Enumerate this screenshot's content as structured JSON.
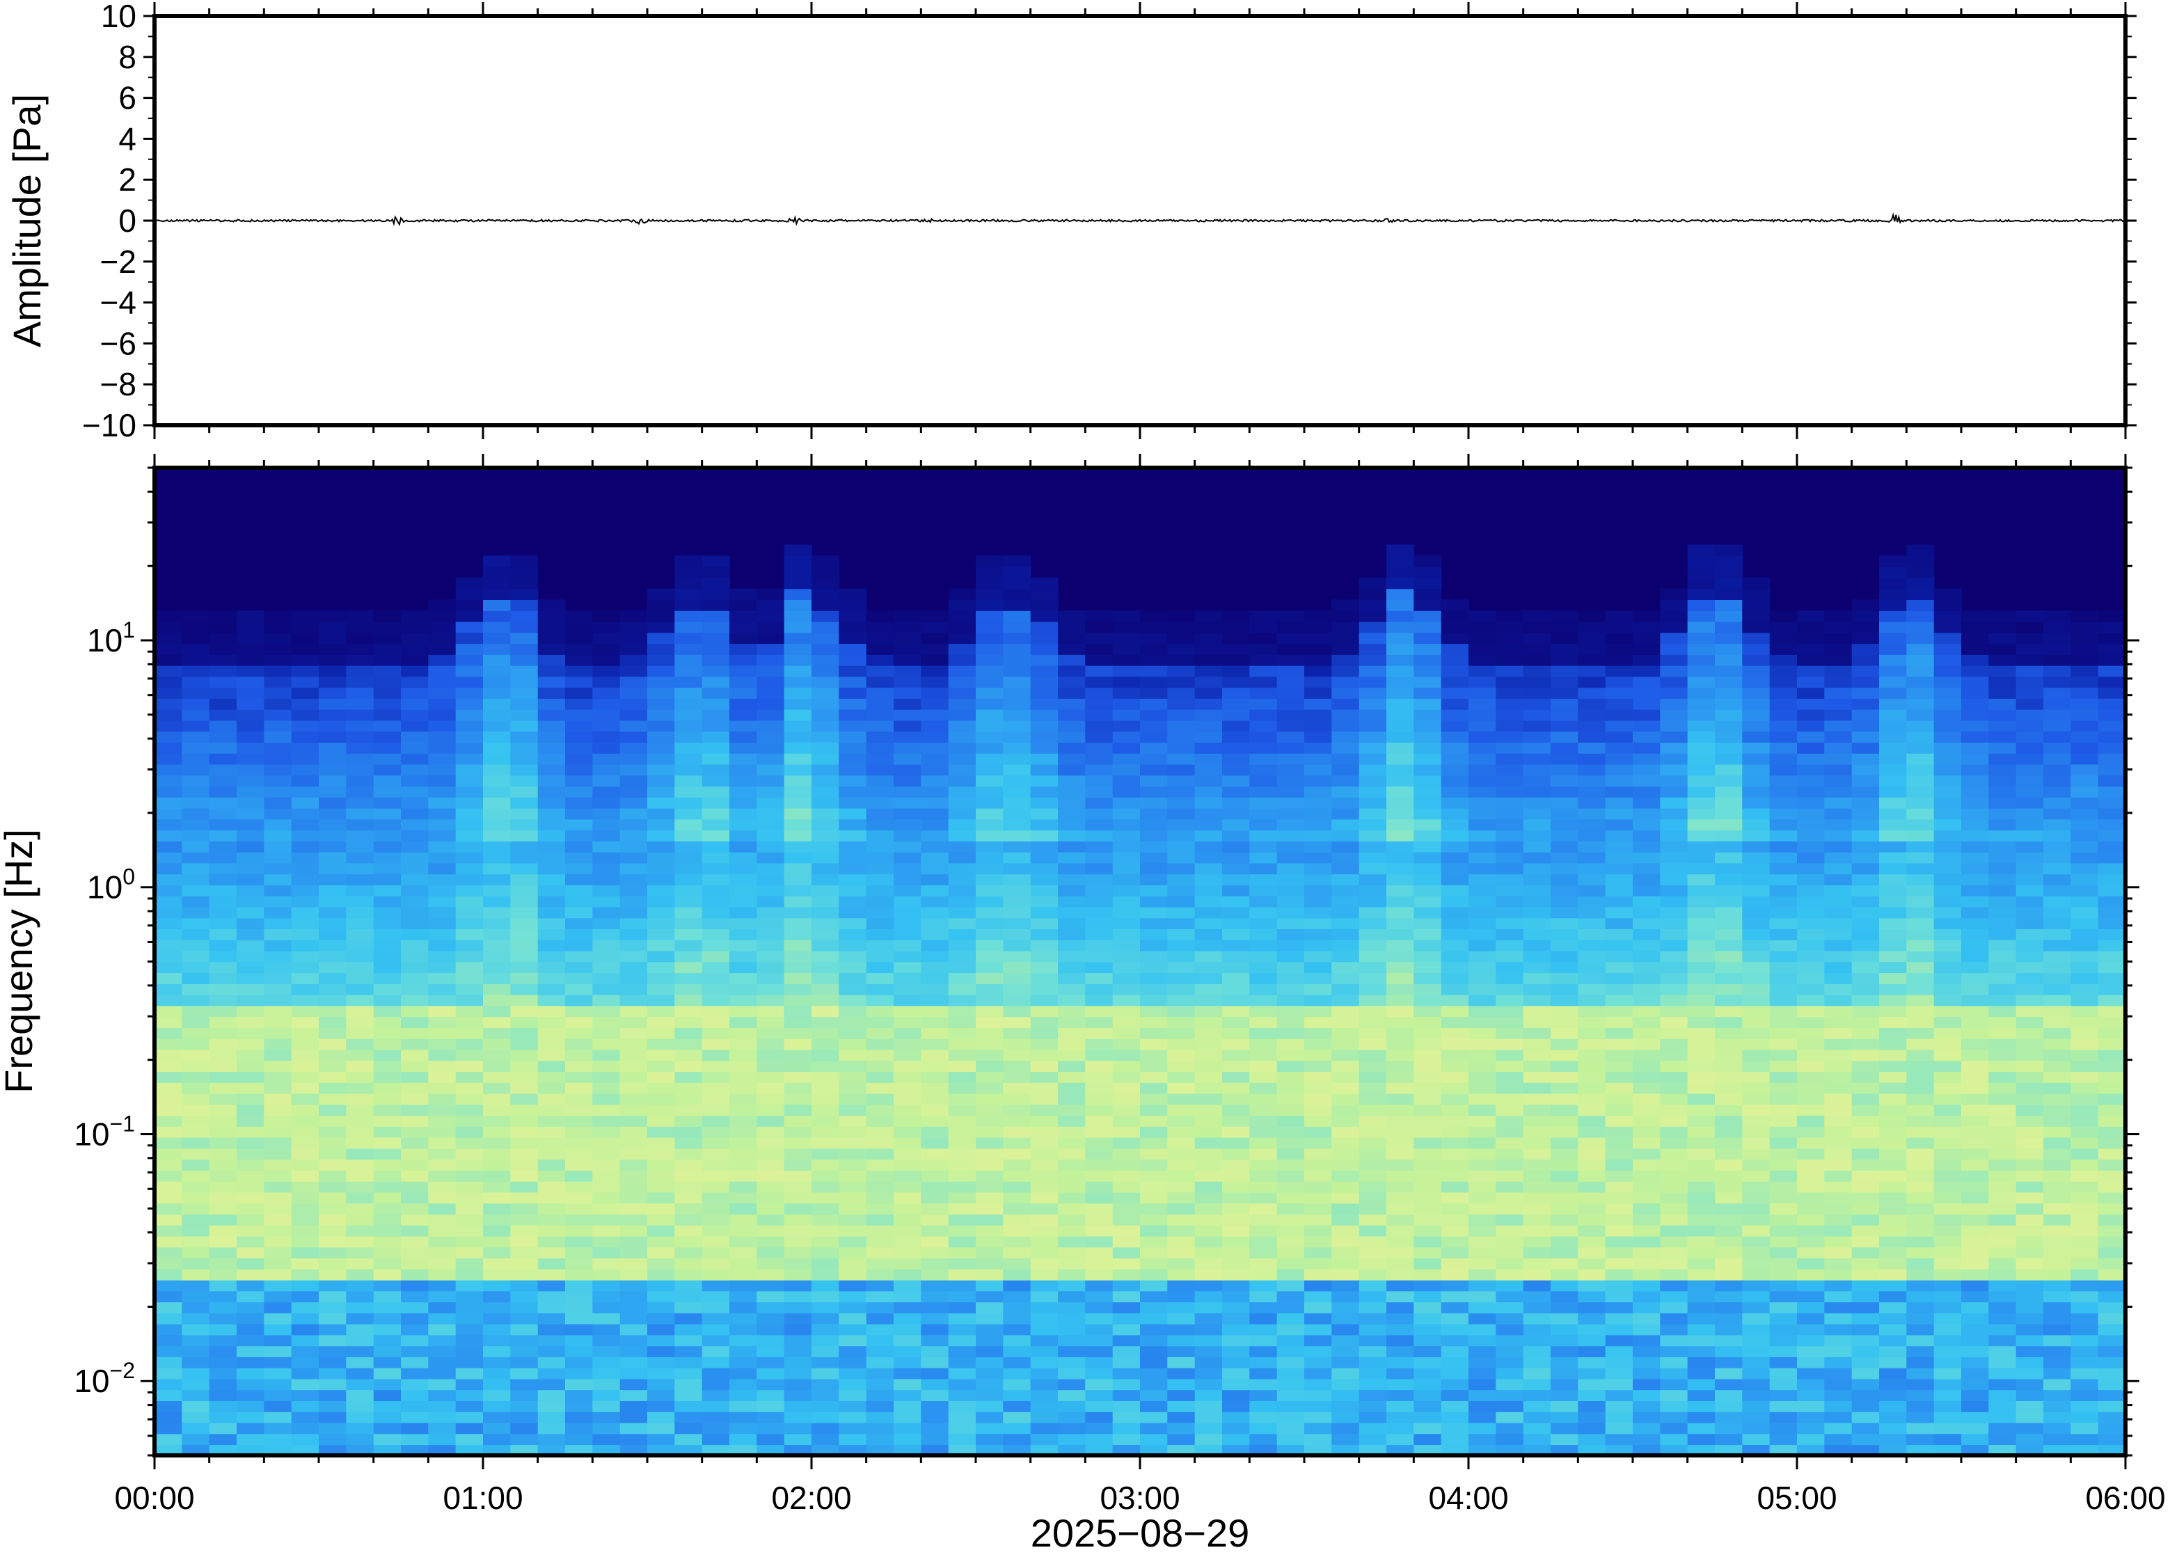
{
  "chart_data": [
    {
      "type": "line",
      "panel": "waveform",
      "ylabel": "Amplitude [Pa]",
      "ylim": [
        -10,
        10
      ],
      "yticks": [
        10,
        8,
        6,
        4,
        2,
        0,
        -2,
        -4,
        -6,
        -8,
        -10
      ],
      "ytick_labels": [
        "10",
        "8",
        "6",
        "4",
        "2",
        "0",
        "−2",
        "−4",
        "−6",
        "−8",
        "−10"
      ],
      "xlim_hours": [
        0,
        6
      ],
      "series": [
        {
          "color": "#000000",
          "description_values_pa": "near-zero trace; small bursts",
          "bursts": [
            {
              "t": 0.74,
              "amp": 0.18
            },
            {
              "t": 1.48,
              "amp": 0.12
            },
            {
              "t": 1.95,
              "amp": 0.15
            },
            {
              "t": 2.35,
              "amp": 0.1
            },
            {
              "t": 3.75,
              "amp": 0.1
            },
            {
              "t": 5.3,
              "amp": 0.3
            }
          ]
        }
      ]
    },
    {
      "type": "heatmap",
      "panel": "spectrogram",
      "ylabel": "Frequency [Hz]",
      "yscale": "log",
      "ylim_hz": [
        0.005,
        50
      ],
      "yticks": [
        {
          "base": "10",
          "exp": "1",
          "value": 10
        },
        {
          "base": "10",
          "exp": "0",
          "value": 1
        },
        {
          "base": "10",
          "exp": "−1",
          "value": 0.1
        },
        {
          "base": "10",
          "exp": "−2",
          "value": 0.01
        }
      ],
      "xlim_hours": [
        0,
        6
      ],
      "colormap": [
        "#0c0070",
        "#0a1fa8",
        "#1e5ae6",
        "#2a8ff0",
        "#35c2f2",
        "#6fe0d8",
        "#c4f29a",
        "#f2f296"
      ],
      "activity_peaks_hours": [
        1.05,
        1.65,
        2.0,
        2.6,
        3.8,
        4.75,
        5.35
      ],
      "ceiling_hz": 10
    }
  ],
  "xaxis": {
    "ticks_hours": [
      0,
      1,
      2,
      3,
      4,
      5,
      6
    ],
    "tick_labels": [
      "00:00",
      "01:00",
      "02:00",
      "03:00",
      "04:00",
      "05:00",
      "06:00"
    ],
    "label": "2025−08−29"
  }
}
